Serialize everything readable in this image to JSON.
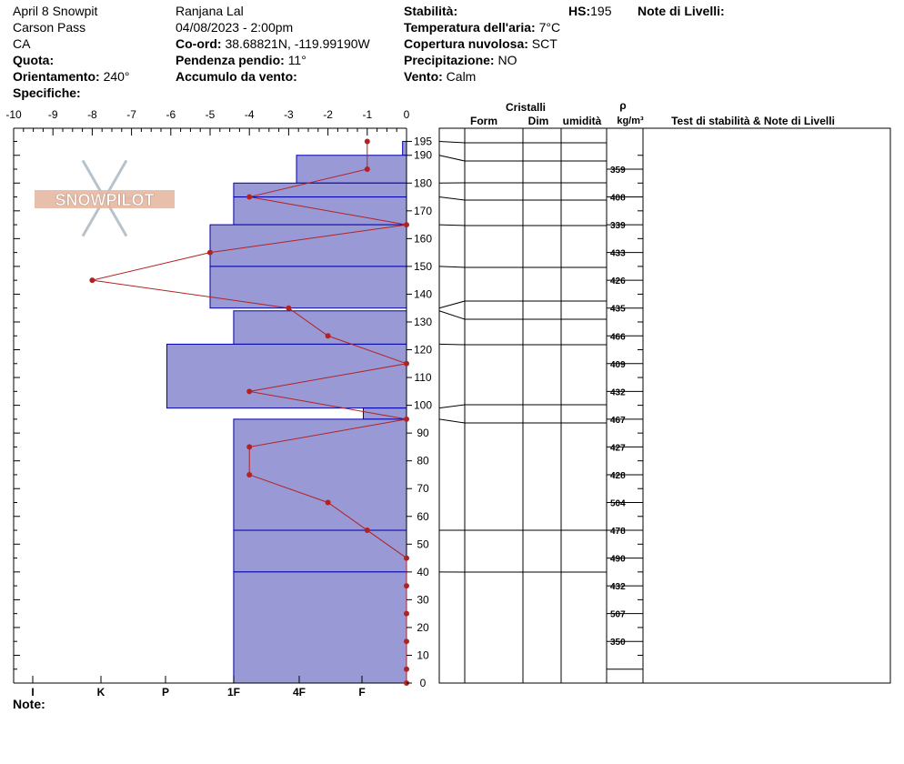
{
  "header": {
    "site_title": "April 8 Snowpit",
    "location": "Carson Pass",
    "state": "CA",
    "quota_label": "Quota:",
    "quota_value": "",
    "orientation_label": "Orientamento:",
    "orientation_value": "240°",
    "specifiche_label": "Specifiche:",
    "observer": "Ranjana Lal",
    "datetime": "04/08/2023 - 2:00pm",
    "coord_label": "Co-ord:",
    "coord_value": "38.68821N, -119.99190W",
    "slope_label": "Pendenza pendio:",
    "slope_value": "11°",
    "wind_loading_label": "Accumulo da vento:",
    "wind_loading_value": "",
    "stability_label": "Stabilità:",
    "stability_value": "",
    "air_temp_label": "Temperatura dell'aria:",
    "air_temp_value": "7°C",
    "cloud_label": "Copertura nuvolosa:",
    "cloud_value": "SCT",
    "precip_label": "Precipitazione:",
    "precip_value": "NO",
    "wind_label": "Vento:",
    "wind_value": "Calm",
    "hs_label": "HS:",
    "hs_value": "195",
    "layer_notes_label": "Note di Livelli:"
  },
  "footer": {
    "notes_label": "Note:"
  },
  "logo_text": "SNOWPILOT",
  "colors": {
    "layer_fill": "#9999d6",
    "layer_stroke": "#0000aa",
    "temp_line": "#b22222",
    "logo": "#e6b8a2"
  },
  "chart_data": {
    "type": "snow-profile",
    "temp_axis": {
      "ticks": [
        "-10",
        "-9",
        "-8",
        "-7",
        "-6",
        "-5",
        "-4",
        "-3",
        "-2",
        "-1",
        "0"
      ],
      "range": [
        -10,
        0
      ]
    },
    "height_axis": {
      "range": [
        0,
        195
      ],
      "labels": [
        "195",
        "190",
        "180",
        "170",
        "160",
        "150",
        "140",
        "130",
        "120",
        "110",
        "100",
        "90",
        "80",
        "70",
        "60",
        "50",
        "40",
        "30",
        "20",
        "10",
        "0"
      ]
    },
    "hardness_axis": {
      "labels": [
        "I",
        "K",
        "P",
        "1F",
        "4F",
        "F"
      ]
    },
    "columns": {
      "crystals": "Cristalli",
      "form": "Form",
      "size": "Dim",
      "moisture": "umidità",
      "density_symbol": "ρ",
      "density_unit": "kg/m³",
      "stability_notes": "Test di stabilità & Note di Livelli"
    },
    "layers": [
      {
        "top": 195,
        "bottom": 190,
        "hardness_temp": -0.1
      },
      {
        "top": 190,
        "bottom": 180,
        "hardness_temp": -2.8
      },
      {
        "top": 180,
        "bottom": 175,
        "hardness_temp": -4.4
      },
      {
        "top": 175,
        "bottom": 165,
        "hardness_temp": -4.4
      },
      {
        "top": 165,
        "bottom": 150,
        "hardness_temp": -5.0
      },
      {
        "top": 150,
        "bottom": 135,
        "hardness_temp": -5.0
      },
      {
        "top": 134,
        "bottom": 122,
        "hardness_temp": -4.4
      },
      {
        "top": 122,
        "bottom": 99,
        "hardness_temp": -6.1
      },
      {
        "top": 99,
        "bottom": 95,
        "hardness_temp": -1.1
      },
      {
        "top": 95,
        "bottom": 55,
        "hardness_temp": -4.4
      },
      {
        "top": 55,
        "bottom": 40,
        "hardness_temp": -4.4
      },
      {
        "top": 40,
        "bottom": 0,
        "hardness_temp": -4.4
      }
    ],
    "layer_lines": [
      195,
      190,
      180,
      175,
      165,
      150,
      135,
      134,
      122,
      99,
      95,
      55,
      40
    ],
    "temperature": [
      {
        "h": 195,
        "t": -1
      },
      {
        "h": 185,
        "t": -1
      },
      {
        "h": 175,
        "t": -4
      },
      {
        "h": 165,
        "t": 0
      },
      {
        "h": 155,
        "t": -5
      },
      {
        "h": 145,
        "t": -8
      },
      {
        "h": 135,
        "t": -3
      },
      {
        "h": 125,
        "t": -2
      },
      {
        "h": 115,
        "t": 0
      },
      {
        "h": 105,
        "t": -4
      },
      {
        "h": 95,
        "t": 0
      },
      {
        "h": 85,
        "t": -4
      },
      {
        "h": 75,
        "t": -4
      },
      {
        "h": 65,
        "t": -2
      },
      {
        "h": 55,
        "t": -1
      },
      {
        "h": 45,
        "t": 0
      },
      {
        "h": 35,
        "t": 0
      },
      {
        "h": 25,
        "t": 0
      },
      {
        "h": 15,
        "t": 0
      },
      {
        "h": 5,
        "t": 0
      },
      {
        "h": 0,
        "t": 0
      }
    ],
    "densities": [
      "359",
      "408",
      "339",
      "433",
      "426",
      "435",
      "466",
      "409",
      "432",
      "467",
      "427",
      "428",
      "504",
      "478",
      "490",
      "432",
      "507",
      "350"
    ],
    "density_heights": [
      185,
      175,
      165,
      155,
      145,
      135,
      125,
      115,
      105,
      95,
      85,
      75,
      65,
      55,
      45,
      35,
      25,
      15
    ]
  }
}
